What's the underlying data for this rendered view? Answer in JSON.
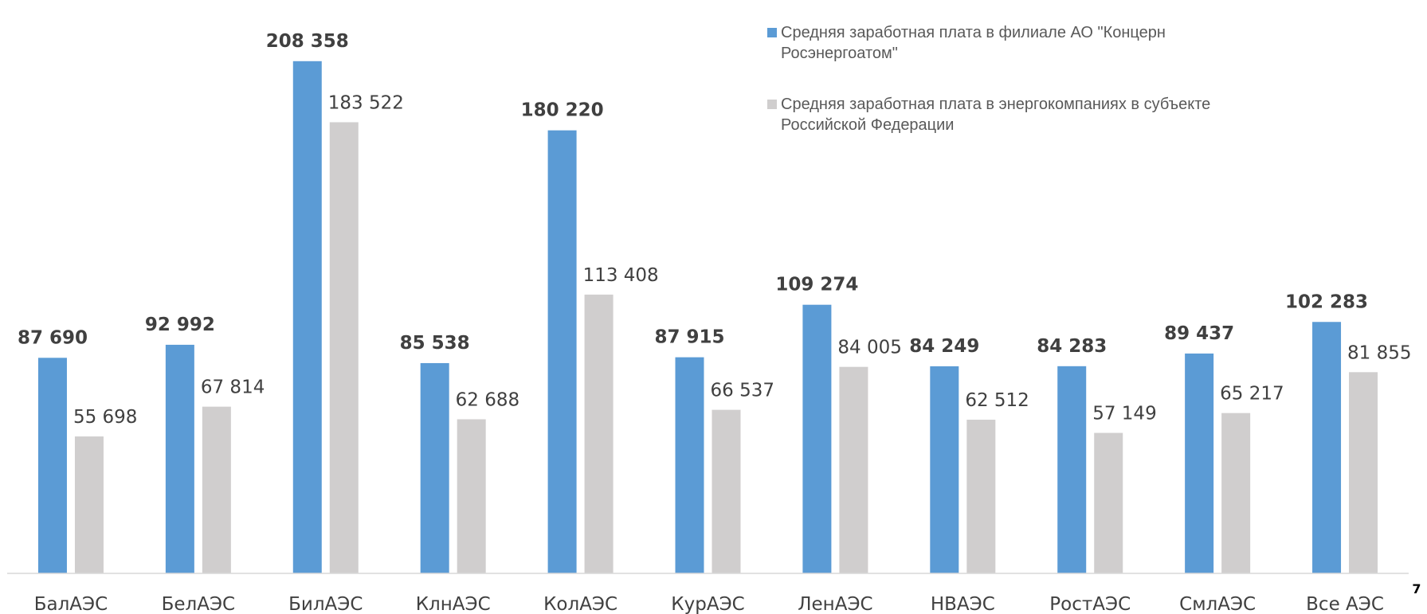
{
  "chart_data": {
    "type": "bar",
    "categories": [
      "БалАЭС",
      "БелАЭС",
      "БилАЭС",
      "КлнАЭС",
      "КолАЭС",
      "КурАЭС",
      "ЛенАЭС",
      "НВАЭС",
      "РостАЭС",
      "СмлАЭС",
      "Все АЭС"
    ],
    "series": [
      {
        "name": "Средняя заработная плата в  филиале АО \"Концерн Росэнергоатом\"",
        "color": "#5b9bd5",
        "values": [
          87690,
          92992,
          208358,
          85538,
          180220,
          87915,
          109274,
          84249,
          84283,
          89437,
          102283
        ],
        "value_labels": [
          "87 690",
          "92 992",
          "208 358",
          "85 538",
          "180 220",
          "87 915",
          "109 274",
          "84 249",
          "84 283",
          "89 437",
          "102 283"
        ]
      },
      {
        "name": "Средняя заработная плата в энергокомпаниях в субъекте Российской Федерации",
        "color": "#d0cece",
        "values": [
          55698,
          67814,
          183522,
          62688,
          113408,
          66537,
          84005,
          62512,
          57149,
          65217,
          81855
        ],
        "value_labels": [
          "55 698",
          "67 814",
          "183 522",
          "62 688",
          "113 408",
          "66 537",
          "84 005",
          "62 512",
          "57 149",
          "65 217",
          "81 855"
        ]
      }
    ],
    "ylim": [
      0,
      230000
    ]
  },
  "page_number": "7"
}
